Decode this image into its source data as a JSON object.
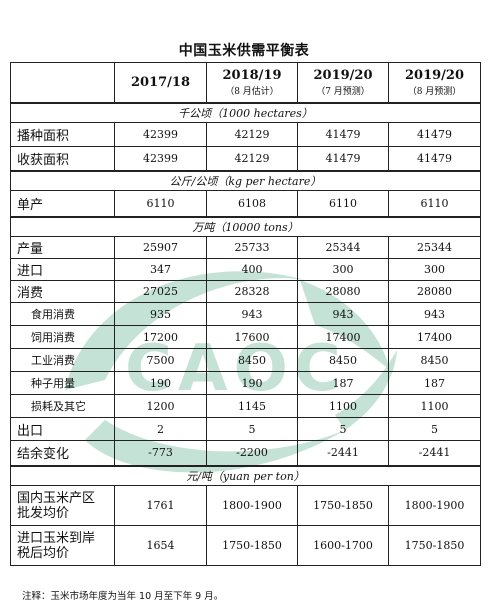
{
  "title": "中国玉米供需平衡表",
  "watermark_text": "CAOC",
  "columns": [
    {
      "year": "2017/18",
      "note": ""
    },
    {
      "year": "2018/19",
      "note": "（8 月估计）"
    },
    {
      "year": "2019/20",
      "note": "（7 月预测）"
    },
    {
      "year": "2019/20",
      "note": "（8 月预测）"
    }
  ],
  "units": {
    "area": "千公顷（1000 hectares）",
    "yield": "公斤/公顷（kg per hectare）",
    "volume": "万吨（10000 tons）",
    "price": "元/吨（yuan per ton）"
  },
  "rows": {
    "sown_area": {
      "label": "播种面积",
      "values": [
        "42399",
        "42129",
        "41479",
        "41479"
      ]
    },
    "harvested_area": {
      "label": "收获面积",
      "values": [
        "42399",
        "42129",
        "41479",
        "41479"
      ]
    },
    "yield": {
      "label": "单产",
      "values": [
        "6110",
        "6108",
        "6110",
        "6110"
      ]
    },
    "production": {
      "label": "产量",
      "values": [
        "25907",
        "25733",
        "25344",
        "25344"
      ]
    },
    "imports": {
      "label": "进口",
      "values": [
        "347",
        "400",
        "300",
        "300"
      ]
    },
    "consumption": {
      "label": "消费",
      "values": [
        "27025",
        "28328",
        "28080",
        "28080"
      ]
    },
    "food": {
      "label": "食用消费",
      "values": [
        "935",
        "943",
        "943",
        "943"
      ]
    },
    "feed": {
      "label": "饲用消费",
      "values": [
        "17200",
        "17600",
        "17400",
        "17400"
      ]
    },
    "industrial": {
      "label": "工业消费",
      "values": [
        "7500",
        "8450",
        "8450",
        "8450"
      ]
    },
    "seed": {
      "label": "种子用量",
      "values": [
        "190",
        "190",
        "187",
        "187"
      ]
    },
    "loss": {
      "label": "损耗及其它",
      "values": [
        "1200",
        "1145",
        "1100",
        "1100"
      ]
    },
    "exports": {
      "label": "出口",
      "values": [
        "2",
        "5",
        "5",
        "5"
      ]
    },
    "balance": {
      "label": "结余变化",
      "values": [
        "-773",
        "-2200",
        "-2441",
        "-2441"
      ]
    },
    "domestic_price": {
      "label_line1": "国内玉米产区",
      "label_line2": "批发均价",
      "values": [
        "1761",
        "1800-1900",
        "1750-1850",
        "1800-1900"
      ]
    },
    "import_price": {
      "label_line1": "进口玉米到岸",
      "label_line2": "税后均价",
      "values": [
        "1654",
        "1750-1850",
        "1600-1700",
        "1750-1850"
      ]
    }
  },
  "note": "注释：玉米市场年度为当年 10 月至下年 9 月。"
}
